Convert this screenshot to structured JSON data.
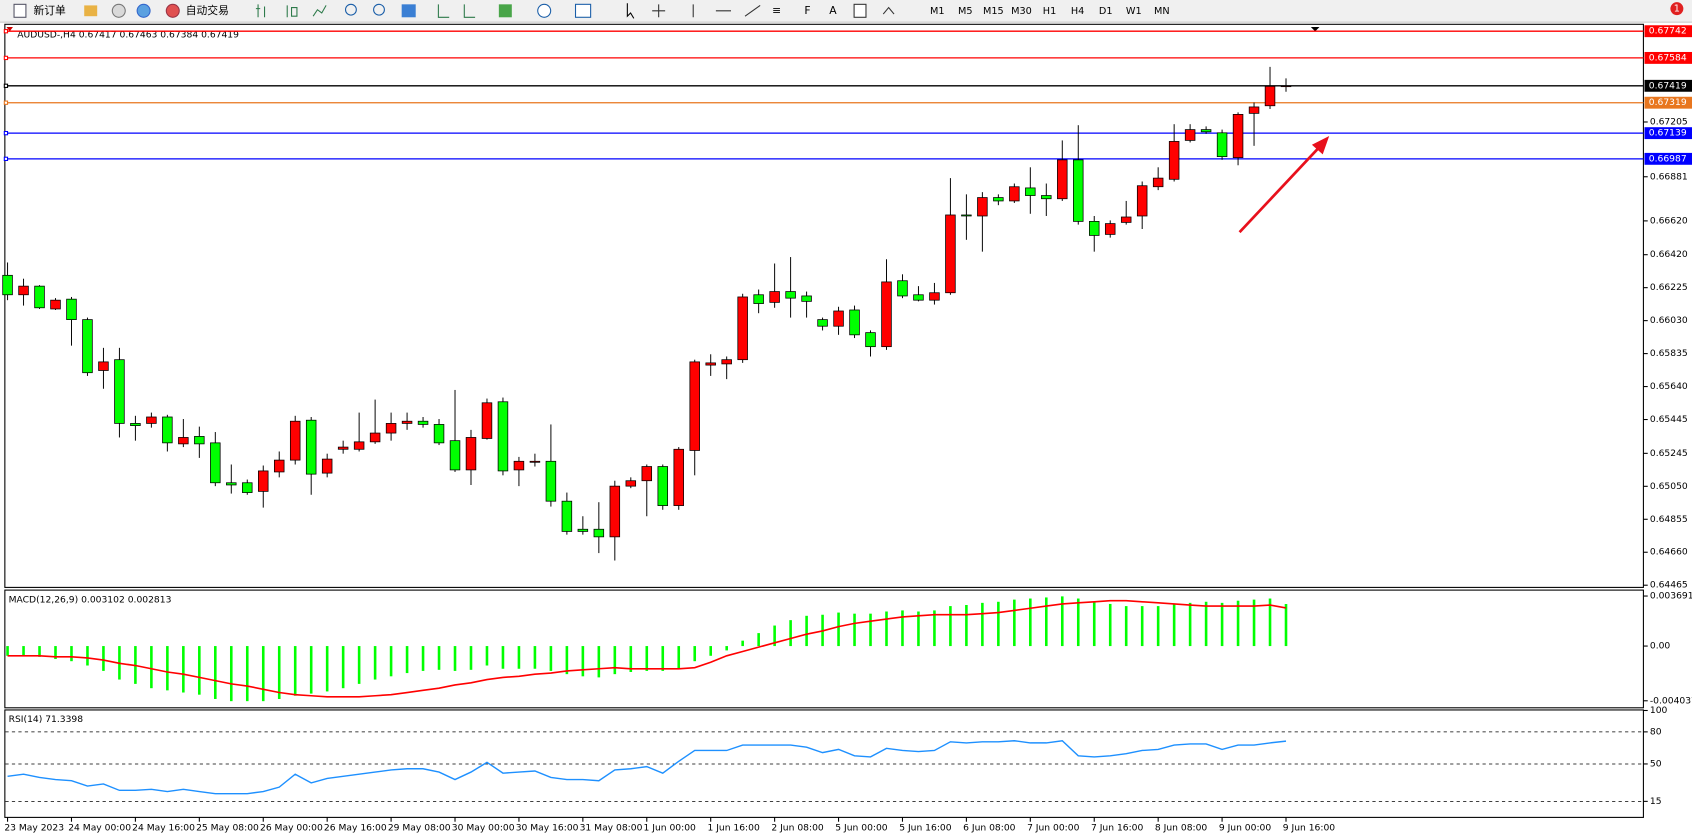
{
  "toolbar": {
    "new_order": "新订单",
    "auto_trading": "自动交易",
    "timeframes": [
      "M1",
      "M5",
      "M15",
      "M30",
      "H1",
      "H4",
      "D1",
      "W1",
      "MN"
    ],
    "notification_count": "1"
  },
  "chart_data": [
    {
      "type": "candlestick",
      "title": "AUDUSD-,H4",
      "categories": [
        "23 May 2023",
        null,
        null,
        null,
        "24 May 00:00",
        null,
        null,
        null,
        "24 May 16:00",
        null,
        null,
        null,
        "25 May 08:00",
        null,
        null,
        null,
        "26 May 00:00",
        null,
        null,
        null,
        "26 May 16:00",
        null,
        null,
        null,
        "29 May 08:00",
        null,
        null,
        null,
        "30 May 00:00",
        null,
        null,
        null,
        "30 May 16:00",
        null,
        null,
        null,
        "31 May 08:00",
        null,
        null,
        null,
        "1 Jun 00:00",
        null,
        null,
        null,
        "1 Jun 16:00",
        null,
        null,
        null,
        "2 Jun 08:00",
        null,
        null,
        null,
        "5 Jun 00:00",
        null,
        null,
        null,
        "5 Jun 16:00",
        null,
        null,
        null,
        "6 Jun 08:00",
        null,
        null,
        null,
        "7 Jun 00:00",
        null,
        null,
        null,
        "7 Jun 16:00",
        null,
        null,
        null,
        "8 Jun 08:00",
        null,
        null,
        null,
        "9 Jun 00:00",
        null,
        null,
        null,
        "9 Jun 16:00"
      ],
      "open": [
        0.66298,
        0.66183,
        0.66234,
        0.66099,
        0.66157,
        0.66036,
        0.65735,
        0.65799,
        0.65422,
        0.65422,
        0.6546,
        0.65301,
        0.65345,
        0.65307,
        0.65071,
        0.65071,
        0.6502,
        0.65135,
        0.65205,
        0.65441,
        0.65128,
        0.65269,
        0.65269,
        0.65313,
        0.65365,
        0.65422,
        0.65435,
        0.65416,
        0.6532,
        0.65147,
        0.65333,
        0.6555,
        0.65147,
        0.65192,
        0.65198,
        0.64962,
        0.64796,
        0.64796,
        0.64751,
        0.65051,
        0.65083,
        0.65167,
        0.64936,
        0.65262,
        0.65767,
        0.65774,
        0.65799,
        0.66183,
        0.66138,
        0.66202,
        0.66176,
        0.66036,
        0.65997,
        0.66093,
        0.65959,
        0.65876,
        0.66266,
        0.66183,
        0.66151,
        0.66195,
        0.66655,
        0.66649,
        0.66758,
        0.66738,
        0.66815,
        0.6677,
        0.66751,
        0.66981,
        0.66617,
        0.6654,
        0.66611,
        0.66649,
        0.66822,
        0.66866,
        0.67096,
        0.6716,
        0.67141,
        0.66994,
        0.67256,
        0.67301,
        0.67417
      ],
      "high": [
        0.66374,
        0.66278,
        0.6624,
        0.66163,
        0.6617,
        0.66048,
        0.65869,
        0.65869,
        0.65467,
        0.65486,
        0.65473,
        0.65448,
        0.65403,
        0.65371,
        0.65179,
        0.6509,
        0.65173,
        0.65256,
        0.65467,
        0.6546,
        0.65243,
        0.6532,
        0.65486,
        0.65563,
        0.65486,
        0.65486,
        0.6546,
        0.65448,
        0.6562,
        0.65384,
        0.65569,
        0.65575,
        0.65224,
        0.65243,
        0.65416,
        0.65013,
        0.64873,
        0.64956,
        0.65083,
        0.65103,
        0.65179,
        0.65179,
        0.65282,
        0.65799,
        0.65831,
        0.65818,
        0.66189,
        0.66214,
        0.66368,
        0.66406,
        0.66202,
        0.66048,
        0.66112,
        0.66119,
        0.65972,
        0.66393,
        0.66304,
        0.66234,
        0.66253,
        0.66873,
        0.66777,
        0.6679,
        0.66777,
        0.66841,
        0.66937,
        0.66841,
        0.67096,
        0.67186,
        0.66649,
        0.66623,
        0.66738,
        0.66853,
        0.66937,
        0.67192,
        0.67192,
        0.67179,
        0.6716,
        0.67262,
        0.6732,
        0.67531,
        0.67463
      ],
      "low": [
        0.66151,
        0.66119,
        0.66099,
        0.66093,
        0.65882,
        0.65703,
        0.65627,
        0.65339,
        0.6532,
        0.65397,
        0.65256,
        0.65282,
        0.65218,
        0.65051,
        0.65007,
        0.65,
        0.64924,
        0.65103,
        0.65179,
        0.65,
        0.65103,
        0.65243,
        0.65256,
        0.65301,
        0.6532,
        0.65384,
        0.65397,
        0.65294,
        0.65135,
        0.65058,
        0.65326,
        0.65115,
        0.65051,
        0.65167,
        0.6493,
        0.64764,
        0.64764,
        0.64655,
        0.64611,
        0.65039,
        0.64873,
        0.64911,
        0.64911,
        0.65115,
        0.65703,
        0.65684,
        0.6578,
        0.66074,
        0.66106,
        0.66048,
        0.66048,
        0.65972,
        0.65946,
        0.65927,
        0.65818,
        0.65857,
        0.66163,
        0.66144,
        0.66125,
        0.66183,
        0.66508,
        0.66438,
        0.66713,
        0.66726,
        0.66662,
        0.66649,
        0.66738,
        0.66598,
        0.66438,
        0.66521,
        0.66598,
        0.66572,
        0.66802,
        0.66853,
        0.67084,
        0.67135,
        0.66981,
        0.66949,
        0.67064,
        0.67282,
        0.67384
      ],
      "close": [
        0.66183,
        0.66234,
        0.66106,
        0.66151,
        0.66036,
        0.65722,
        0.65786,
        0.65422,
        0.65409,
        0.6546,
        0.65307,
        0.65339,
        0.65301,
        0.65071,
        0.65058,
        0.65013,
        0.65141,
        0.65205,
        0.65435,
        0.65122,
        0.65211,
        0.65282,
        0.65313,
        0.65365,
        0.65422,
        0.65435,
        0.65416,
        0.65307,
        0.65147,
        0.65339,
        0.65544,
        0.65141,
        0.65198,
        0.65198,
        0.64962,
        0.64783,
        0.64783,
        0.64751,
        0.65051,
        0.65083,
        0.65167,
        0.64936,
        0.65269,
        0.65786,
        0.6578,
        0.65799,
        0.6617,
        0.66131,
        0.66202,
        0.66163,
        0.66144,
        0.65997,
        0.66087,
        0.65946,
        0.65876,
        0.66259,
        0.66176,
        0.66151,
        0.66195,
        0.66655,
        0.66649,
        0.66758,
        0.66738,
        0.66822,
        0.6677,
        0.66751,
        0.66981,
        0.66617,
        0.66534,
        0.66604,
        0.66643,
        0.66828,
        0.66873,
        0.6709,
        0.6716,
        0.67147,
        0.67,
        0.6725,
        0.67294,
        0.67416,
        0.67419
      ],
      "up_color": "#ff0000",
      "down_color": "#00ff00",
      "ylim": [
        0.64452,
        0.67786
      ],
      "yticks": [
        0.67205,
        0.66881,
        {
          "value": 0.6662,
          "label": "0.66620"
        },
        {
          "value": 0.6642,
          "label": "0.66420"
        },
        0.66225,
        {
          "value": 0.6603,
          "label": "0.66030"
        },
        0.65835,
        {
          "value": 0.6564,
          "label": "0.65640"
        },
        0.65445,
        0.65245,
        {
          "value": 0.6505,
          "label": "0.65050"
        },
        0.64855,
        {
          "value": 0.6466,
          "label": "0.64660"
        },
        0.64465
      ],
      "hlines": [
        {
          "value": 0.67742,
          "color": "#ff0000"
        },
        {
          "value": 0.67584,
          "color": "#ff0000"
        },
        {
          "value": 0.67419,
          "color": "#000000"
        },
        {
          "value": 0.67319,
          "color": "#e8761e"
        },
        {
          "value": 0.67139,
          "color": "#0000ff"
        },
        {
          "value": 0.66987,
          "color": "#0000ff"
        }
      ]
    },
    {
      "type": "macd",
      "title": "MACD(12,26,9)",
      "histogram": {
        "color": "#00ff00",
        "values": [
          -0.000717,
          -0.000717,
          -0.000797,
          -0.000956,
          -0.001116,
          -0.001435,
          -0.001833,
          -0.002471,
          -0.00279,
          -0.003108,
          -0.003268,
          -0.003427,
          -0.003587,
          -0.003905,
          -0.004065,
          -0.004065,
          -0.004065,
          -0.003905,
          -0.003666,
          -0.003507,
          -0.003347,
          -0.003108,
          -0.00279,
          -0.002471,
          -0.002232,
          -0.001993,
          -0.001833,
          -0.001753,
          -0.001833,
          -0.001753,
          -0.001435,
          -0.001674,
          -0.001674,
          -0.001674,
          -0.001833,
          -0.002072,
          -0.002232,
          -0.002311,
          -0.002072,
          -0.001913,
          -0.001833,
          -0.001833,
          -0.001674,
          -0.001116,
          -0.000717,
          -0.000319,
          0.000399,
          0.000956,
          0.001514,
          0.001913,
          0.002232,
          0.002311,
          0.002471,
          0.002391,
          0.002391,
          0.00255,
          0.00263,
          0.00255,
          0.00263,
          0.002949,
          0.003029,
          0.003188,
          0.003268,
          0.003427,
          0.003507,
          0.003587,
          0.003666,
          0.003507,
          0.003268,
          0.003108,
          0.002949,
          0.002949,
          0.002949,
          0.003108,
          0.003188,
          0.003268,
          0.003188,
          0.003347,
          0.003427,
          0.003507,
          0.003102
        ]
      },
      "signal": {
        "color": "#ff0000",
        "values": [
          -0.000717,
          -0.000717,
          -0.000717,
          -0.000797,
          -0.000797,
          -0.000877,
          -0.001036,
          -0.001275,
          -0.001435,
          -0.001674,
          -0.001913,
          -0.002072,
          -0.002311,
          -0.00255,
          -0.00279,
          -0.002949,
          -0.003188,
          -0.003427,
          -0.003587,
          -0.003666,
          -0.003746,
          -0.003746,
          -0.003746,
          -0.003666,
          -0.003587,
          -0.003427,
          -0.003268,
          -0.003108,
          -0.002869,
          -0.00271,
          -0.002471,
          -0.002311,
          -0.002232,
          -0.002072,
          -0.001993,
          -0.001833,
          -0.001753,
          -0.001674,
          -0.001594,
          -0.001674,
          -0.001674,
          -0.001674,
          -0.001674,
          -0.001594,
          -0.001196,
          -0.000717,
          -0.000399,
          -8e-05,
          0.000239,
          0.000558,
          0.000877,
          0.001116,
          0.001435,
          0.001674,
          0.001833,
          0.001993,
          0.002152,
          0.002232,
          0.002311,
          0.002311,
          0.002311,
          0.002391,
          0.002471,
          0.00263,
          0.00279,
          0.002949,
          0.003108,
          0.003188,
          0.003268,
          0.003347,
          0.003347,
          0.003268,
          0.003188,
          0.003108,
          0.003029,
          0.002949,
          0.002949,
          0.002949,
          0.002949,
          0.003029,
          0.002813
        ]
      },
      "ylim": [
        -0.004515,
        0.004089
      ],
      "yticks": [
        0.003691,
        {
          "value": 0,
          "label": "0.00"
        },
        -0.004037
      ]
    },
    {
      "type": "rsi",
      "title": "RSI(14)",
      "color": "#1e90ff",
      "values": [
        38.4,
        40.4,
        37.4,
        35.4,
        34.3,
        29.3,
        31.3,
        25.3,
        25.3,
        26.3,
        24.2,
        26.3,
        24.2,
        22.2,
        22.2,
        22.2,
        24.2,
        28.3,
        40.4,
        32.3,
        36.4,
        38.4,
        40.4,
        42.4,
        44.4,
        45.5,
        45.5,
        42.4,
        35.4,
        42.4,
        51.5,
        41.4,
        42.4,
        43.4,
        37.4,
        35.4,
        35.4,
        34.3,
        44.4,
        45.5,
        47.5,
        41.4,
        52.5,
        62.6,
        62.6,
        62.6,
        67.7,
        67.7,
        67.7,
        67.7,
        65.7,
        60.6,
        63.6,
        57.6,
        56.6,
        64.6,
        62.6,
        61.6,
        62.6,
        70.7,
        69.7,
        70.7,
        70.7,
        71.7,
        69.7,
        69.7,
        71.7,
        57.6,
        56.6,
        57.6,
        59.6,
        62.6,
        63.6,
        67.7,
        68.7,
        68.7,
        63.6,
        67.7,
        67.7,
        69.7,
        71.3398
      ],
      "ylim": [
        0,
        100
      ],
      "yticks": [
        100,
        80,
        50,
        15
      ],
      "levels": [
        80,
        50,
        15
      ]
    }
  ]
}
